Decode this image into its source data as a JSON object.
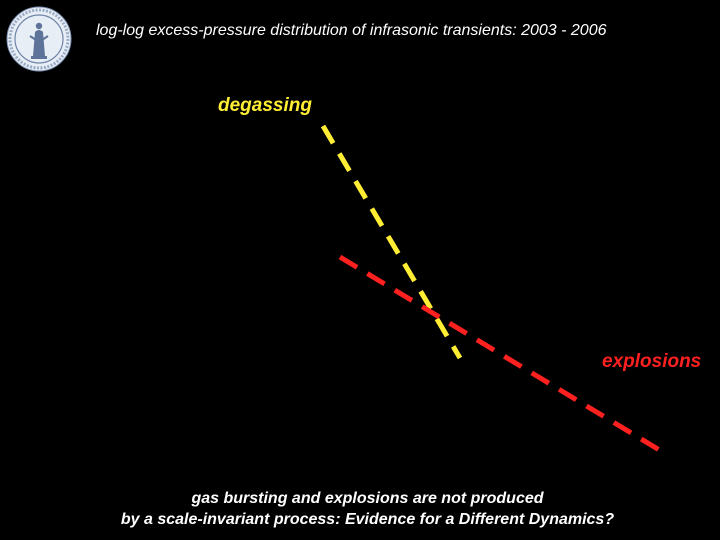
{
  "slide": {
    "title": "log-log excess-pressure distribution of infrasonic transients: 2003 - 2006",
    "caption_line1": "gas bursting and explosions are not produced",
    "caption_line2": "by a scale-invariant process: Evidence for a Different Dynamics?"
  },
  "series": [
    {
      "name": "degassing",
      "color": "#ffee33"
    },
    {
      "name": "explosions",
      "color": "#ff2020"
    }
  ],
  "logo": {
    "icon": "university-seal-icon"
  },
  "background_color": "#000000"
}
